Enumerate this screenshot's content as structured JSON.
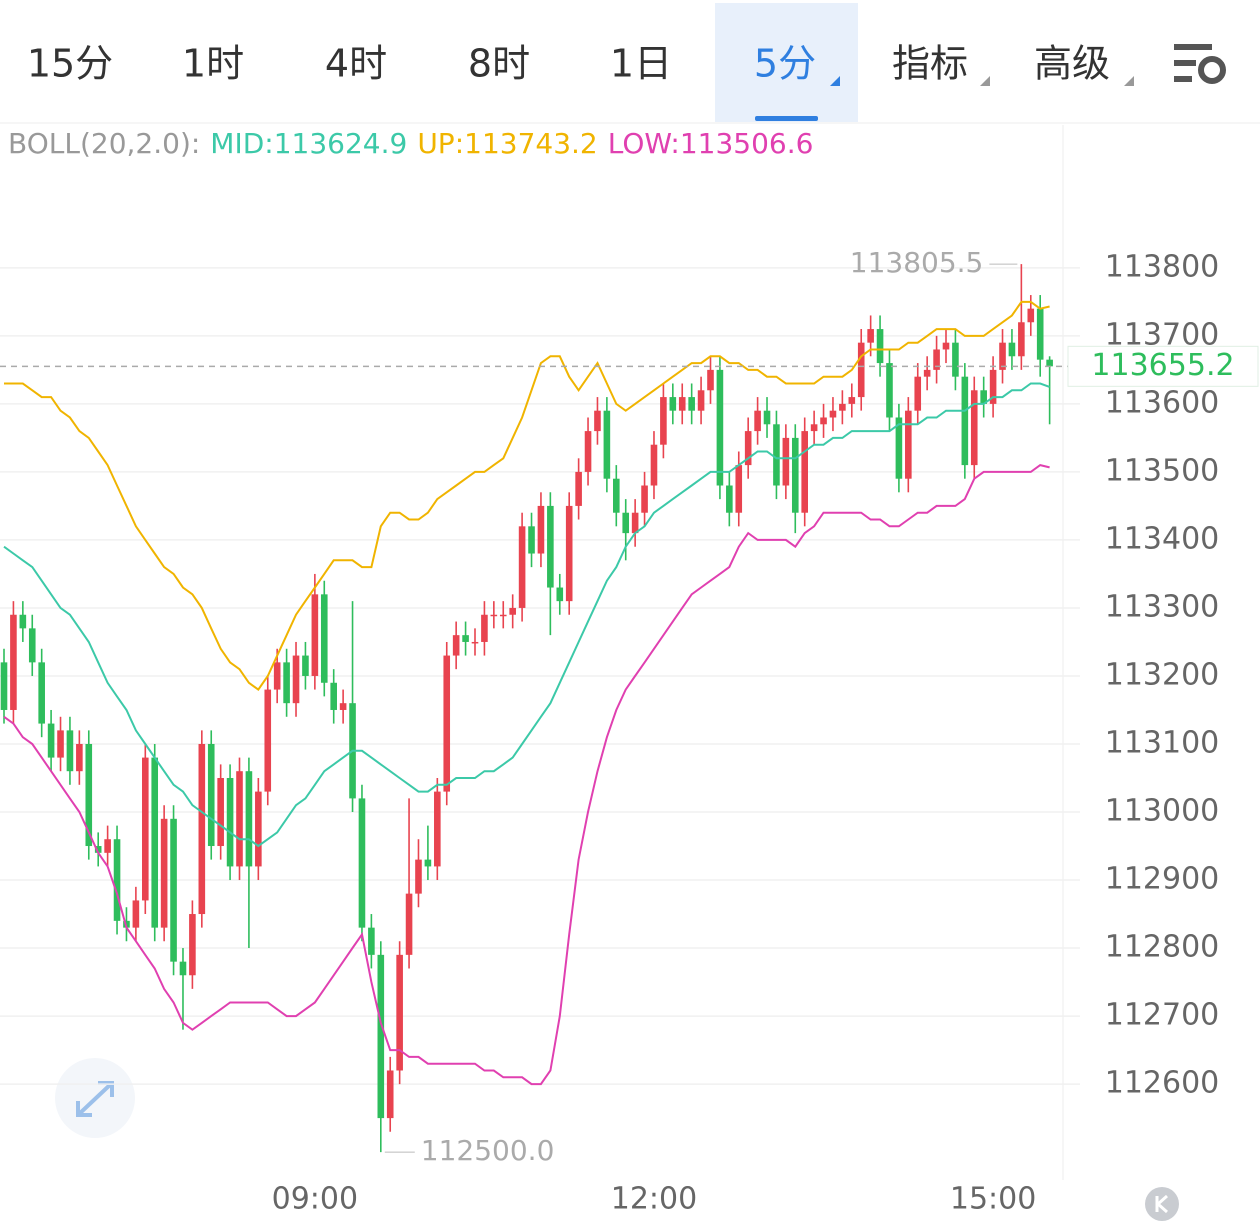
{
  "toolbar": {
    "tabs": [
      "15分",
      "1时",
      "4时",
      "8时",
      "1日",
      "5分",
      "指标",
      "高级"
    ],
    "selected": 5
  },
  "chart_data": {
    "type": "candlestick",
    "indicator": {
      "label": "BOLL(20,2.0):",
      "lines": [
        {
          "label": "MID:113624.9",
          "color": "#3cc9a8",
          "values": [
            113390,
            113380,
            113370,
            113360,
            113340,
            113320,
            113300,
            113290,
            113270,
            113250,
            113220,
            113190,
            113170,
            113150,
            113120,
            113100,
            113080,
            113060,
            113040,
            113030,
            113010,
            113000,
            112990,
            112980,
            112970,
            112960,
            112960,
            112950,
            112960,
            112970,
            112990,
            113010,
            113020,
            113040,
            113060,
            113070,
            113080,
            113090,
            113090,
            113080,
            113070,
            113060,
            113050,
            113040,
            113030,
            113030,
            113040,
            113040,
            113050,
            113050,
            113050,
            113060,
            113060,
            113070,
            113080,
            113100,
            113120,
            113140,
            113160,
            113190,
            113220,
            113250,
            113280,
            113310,
            113340,
            113360,
            113390,
            113410,
            113420,
            113440,
            113450,
            113460,
            113470,
            113480,
            113490,
            113500,
            113500,
            113500,
            113510,
            113520,
            113530,
            113530,
            113520,
            113520,
            113520,
            113530,
            113540,
            113540,
            113550,
            113550,
            113560,
            113560,
            113560,
            113560,
            113560,
            113570,
            113570,
            113570,
            113580,
            113580,
            113590,
            113590,
            113590,
            113600,
            113600,
            113610,
            113610,
            113620,
            113620,
            113630,
            113630,
            113624.9
          ]
        },
        {
          "label": "UP:113743.2",
          "color": "#f0b400",
          "values": [
            113630,
            113630,
            113630,
            113620,
            113610,
            113610,
            113590,
            113580,
            113560,
            113550,
            113530,
            113510,
            113480,
            113450,
            113420,
            113400,
            113380,
            113360,
            113350,
            113330,
            113320,
            113300,
            113270,
            113240,
            113220,
            113210,
            113190,
            113180,
            113200,
            113230,
            113260,
            113290,
            113310,
            113330,
            113350,
            113370,
            113370,
            113370,
            113360,
            113360,
            113420,
            113440,
            113440,
            113430,
            113430,
            113440,
            113460,
            113470,
            113480,
            113490,
            113500,
            113500,
            113510,
            113520,
            113550,
            113580,
            113620,
            113660,
            113670,
            113670,
            113640,
            113620,
            113640,
            113660,
            113630,
            113600,
            113590,
            113600,
            113610,
            113620,
            113630,
            113640,
            113650,
            113660,
            113660,
            113670,
            113670,
            113660,
            113660,
            113650,
            113650,
            113640,
            113640,
            113630,
            113630,
            113630,
            113630,
            113640,
            113640,
            113640,
            113650,
            113670,
            113680,
            113680,
            113680,
            113680,
            113690,
            113690,
            113700,
            113710,
            113710,
            113710,
            113700,
            113700,
            113700,
            113710,
            113720,
            113730,
            113750,
            113750,
            113740,
            113743.2
          ]
        },
        {
          "label": "LOW:113506.6",
          "color": "#e040b0",
          "values": [
            113140,
            113130,
            113110,
            113100,
            113080,
            113060,
            113040,
            113020,
            113000,
            112970,
            112940,
            112920,
            112880,
            112830,
            112810,
            112790,
            112770,
            112740,
            112720,
            112690,
            112680,
            112690,
            112700,
            112710,
            112720,
            112720,
            112720,
            112720,
            112720,
            112710,
            112700,
            112700,
            112710,
            112720,
            112740,
            112760,
            112780,
            112800,
            112820,
            112750,
            112690,
            112650,
            112650,
            112640,
            112640,
            112630,
            112630,
            112630,
            112630,
            112630,
            112630,
            112620,
            112620,
            112610,
            112610,
            112610,
            112600,
            112600,
            112620,
            112700,
            112820,
            112930,
            113000,
            113060,
            113110,
            113150,
            113180,
            113200,
            113220,
            113240,
            113260,
            113280,
            113300,
            113320,
            113330,
            113340,
            113350,
            113360,
            113390,
            113410,
            113400,
            113400,
            113400,
            113400,
            113390,
            113410,
            113420,
            113440,
            113440,
            113440,
            113440,
            113440,
            113430,
            113430,
            113420,
            113420,
            113430,
            113440,
            113440,
            113450,
            113450,
            113450,
            113460,
            113490,
            113500,
            113500,
            113500,
            113500,
            113500,
            113500,
            113510,
            113506.6
          ]
        }
      ]
    },
    "categories": [
      null,
      null,
      null,
      null,
      null,
      null,
      null,
      null,
      null,
      null,
      null,
      null,
      null,
      null,
      null,
      null,
      null,
      null,
      null,
      null,
      null,
      null,
      null,
      null,
      null,
      null,
      null,
      null,
      null,
      null,
      null,
      null,
      null,
      "09:00",
      null,
      null,
      null,
      null,
      null,
      null,
      null,
      null,
      null,
      null,
      null,
      null,
      null,
      null,
      null,
      null,
      null,
      null,
      null,
      null,
      null,
      null,
      null,
      null,
      null,
      null,
      null,
      null,
      null,
      null,
      null,
      null,
      null,
      null,
      null,
      "12:00",
      null,
      null,
      null,
      null,
      null,
      null,
      null,
      null,
      null,
      null,
      null,
      null,
      null,
      null,
      null,
      null,
      null,
      null,
      null,
      null,
      null,
      null,
      null,
      null,
      null,
      null,
      null,
      null,
      null,
      null,
      null,
      null,
      null,
      null,
      null,
      "15:00",
      null,
      null,
      null,
      null,
      null,
      null
    ],
    "open": [
      113220,
      113150,
      113290,
      113270,
      113220,
      113130,
      113080,
      113120,
      113060,
      113100,
      112950,
      112940,
      112960,
      112840,
      112830,
      112870,
      113080,
      112830,
      112990,
      112780,
      112760,
      112850,
      113100,
      112950,
      113050,
      112920,
      113060,
      112920,
      113030,
      113180,
      113220,
      113160,
      113230,
      113200,
      113320,
      113190,
      113150,
      113160,
      113020,
      112830,
      112790,
      112550,
      112620,
      112790,
      112880,
      112930,
      112920,
      113030,
      113230,
      113260,
      113250,
      113250,
      113290,
      113290,
      113290,
      113300,
      113420,
      113380,
      113450,
      113330,
      113310,
      113450,
      113500,
      113560,
      113590,
      113490,
      113440,
      113410,
      113440,
      113480,
      113540,
      113610,
      113590,
      113610,
      113590,
      113620,
      113650,
      113480,
      113440,
      113510,
      113560,
      113590,
      113570,
      113480,
      113550,
      113440,
      113560,
      113570,
      113580,
      113590,
      113600,
      113610,
      113690,
      113710,
      113660,
      113580,
      113490,
      113590,
      113640,
      113650,
      113680,
      113690,
      113640,
      113510,
      113620,
      113600,
      113650,
      113690,
      113670,
      113720,
      113740,
      113665
    ],
    "high": [
      113240,
      113310,
      113310,
      113290,
      113240,
      113150,
      113140,
      113140,
      113120,
      113120,
      112970,
      112980,
      112980,
      112860,
      112890,
      113100,
      113100,
      113010,
      113010,
      112800,
      112870,
      113120,
      113120,
      113070,
      113070,
      113080,
      113080,
      113050,
      113200,
      113240,
      113240,
      113250,
      113250,
      113350,
      113340,
      113210,
      113180,
      113310,
      113040,
      112850,
      112810,
      112640,
      112810,
      113020,
      112960,
      112980,
      113050,
      113250,
      113280,
      113280,
      113270,
      113310,
      113310,
      113310,
      113320,
      113440,
      113440,
      113470,
      113470,
      113350,
      113470,
      113520,
      113580,
      113610,
      113610,
      113510,
      113460,
      113460,
      113500,
      113560,
      113630,
      113630,
      113630,
      113630,
      113640,
      113670,
      113670,
      113500,
      113530,
      113580,
      113610,
      113610,
      113590,
      113570,
      113570,
      113580,
      113590,
      113600,
      113610,
      113620,
      113630,
      113710,
      113730,
      113730,
      113680,
      113600,
      113610,
      113660,
      113670,
      113700,
      113710,
      113710,
      113660,
      113640,
      113640,
      113670,
      113710,
      113710,
      113805.5,
      113760,
      113760,
      113670
    ],
    "low": [
      113130,
      113130,
      113250,
      113200,
      113110,
      113060,
      113060,
      113040,
      113040,
      112930,
      112920,
      112920,
      112820,
      112810,
      112810,
      112850,
      112810,
      112810,
      112760,
      112680,
      112740,
      112830,
      112930,
      112930,
      112900,
      112900,
      112800,
      112900,
      113010,
      113160,
      113140,
      113140,
      113180,
      113180,
      113170,
      113130,
      113130,
      113000,
      112810,
      112770,
      112500,
      112530,
      112600,
      112770,
      112860,
      112900,
      112900,
      113010,
      113210,
      113230,
      113230,
      113230,
      113270,
      113270,
      113270,
      113280,
      113360,
      113360,
      113260,
      113290,
      113290,
      113430,
      113480,
      113540,
      113470,
      113420,
      113370,
      113390,
      113420,
      113460,
      113520,
      113570,
      113570,
      113570,
      113570,
      113600,
      113460,
      113420,
      113420,
      113490,
      113540,
      113550,
      113460,
      113460,
      113410,
      113420,
      113540,
      113550,
      113560,
      113570,
      113580,
      113590,
      113670,
      113640,
      113560,
      113470,
      113470,
      113570,
      113620,
      113630,
      113660,
      113620,
      113490,
      113490,
      113580,
      113580,
      113630,
      113650,
      113650,
      113700,
      113640,
      113570
    ],
    "close": [
      113150,
      113290,
      113270,
      113220,
      113130,
      113080,
      113120,
      113060,
      113100,
      112950,
      112940,
      112960,
      112840,
      112830,
      112870,
      113080,
      112830,
      112990,
      112780,
      112760,
      112850,
      113100,
      112950,
      113050,
      112920,
      113060,
      112920,
      113030,
      113180,
      113220,
      113160,
      113230,
      113200,
      113320,
      113190,
      113150,
      113160,
      113020,
      112830,
      112790,
      112550,
      112620,
      112790,
      112880,
      112930,
      112920,
      113030,
      113230,
      113260,
      113250,
      113250,
      113290,
      113290,
      113290,
      113300,
      113420,
      113380,
      113450,
      113330,
      113310,
      113450,
      113500,
      113560,
      113590,
      113490,
      113440,
      113410,
      113440,
      113480,
      113540,
      113610,
      113590,
      113610,
      113590,
      113620,
      113650,
      113480,
      113440,
      113510,
      113560,
      113590,
      113570,
      113480,
      113550,
      113440,
      113560,
      113570,
      113580,
      113590,
      113600,
      113610,
      113690,
      113710,
      113660,
      113580,
      113490,
      113590,
      113640,
      113650,
      113680,
      113690,
      113640,
      113510,
      113620,
      113600,
      113650,
      113690,
      113670,
      113720,
      113740,
      113665,
      113655.2
    ],
    "up_color": "#e8434f",
    "down_color": "#2ebd5c",
    "annotations": [
      {
        "value": 113805.5,
        "label": "113805.5"
      },
      {
        "value": 112500,
        "label": "112500.0"
      }
    ],
    "last_price": {
      "value": 113655.2,
      "label": "113655.2"
    },
    "ylim": [
      112459,
      114010
    ],
    "yticks": [
      112600,
      112700,
      112800,
      112900,
      113000,
      113100,
      113200,
      113300,
      113400,
      113500,
      113600,
      113700,
      113800
    ],
    "grid": true
  }
}
